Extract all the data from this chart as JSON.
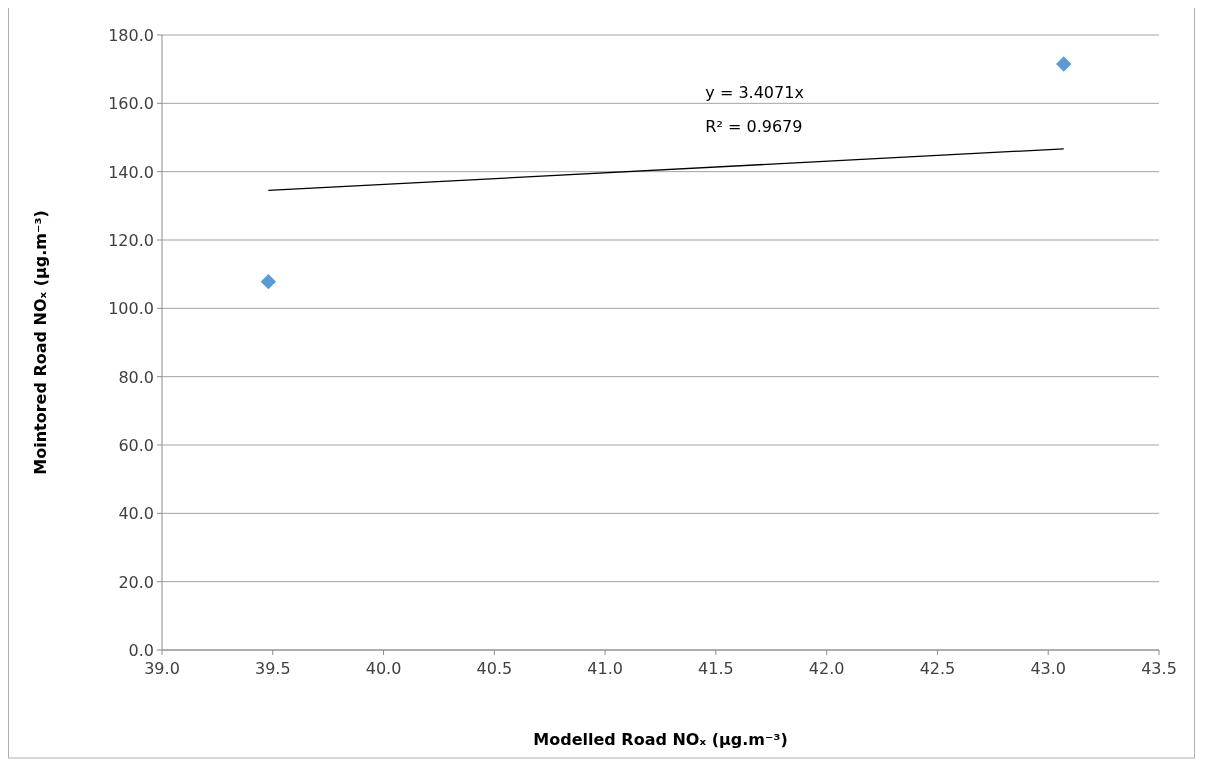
{
  "chart_data": {
    "type": "scatter",
    "xlabel": "Modelled Road NOₓ (µg.m⁻³)",
    "ylabel": "Mointored Road NOₓ (µg.m⁻³)",
    "series": [
      {
        "color": "#5b9bd5",
        "values": [
          107.8,
          171.5
        ],
        "marker": "diamond"
      },
      {
        "type": "line",
        "color": "#000000",
        "values": [
          134.5,
          146.7
        ],
        "marker": "none"
      }
    ],
    "x": [
      39.48,
      43.07
    ],
    "xlim": [
      39.0,
      43.5
    ],
    "xticks": [
      {
        "value": 39,
        "label": "39.0"
      },
      {
        "value": 39.5,
        "label": "39.5"
      },
      {
        "value": 40,
        "label": "40.0"
      },
      {
        "value": 40.5,
        "label": "40.5"
      },
      {
        "value": 41,
        "label": "41.0"
      },
      {
        "value": 41.5,
        "label": "41.5"
      },
      {
        "value": 42,
        "label": "42.0"
      },
      {
        "value": 42.5,
        "label": "42.5"
      },
      {
        "value": 43,
        "label": "43.0"
      },
      {
        "value": 43.5,
        "label": "43.5"
      }
    ],
    "ylim": [
      0,
      180
    ],
    "yticks": [
      {
        "value": 0,
        "label": "0.0"
      },
      {
        "value": 20,
        "label": "20.0"
      },
      {
        "value": 40,
        "label": "40.0"
      },
      {
        "value": 60,
        "label": "60.0"
      },
      {
        "value": 80,
        "label": "80.0"
      },
      {
        "value": 100,
        "label": "100.0"
      },
      {
        "value": 120,
        "label": "120.0"
      },
      {
        "value": 140,
        "label": "140.0"
      },
      {
        "value": 160,
        "label": "160.0"
      },
      {
        "value": 180,
        "label": "180.0"
      }
    ],
    "grid": "y",
    "annotations": [
      "y = 3.4071x",
      "R² = 0.9679"
    ]
  }
}
